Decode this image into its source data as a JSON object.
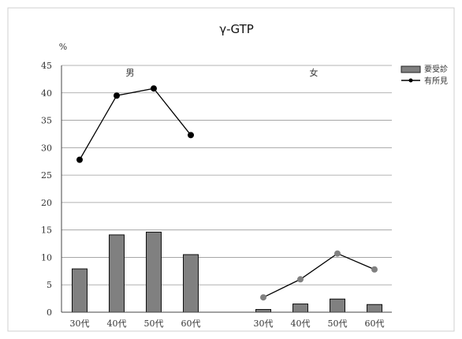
{
  "chart_data": {
    "type": "bar",
    "title": "γ-GTP",
    "ylabel": "%",
    "ylim": [
      0,
      45
    ],
    "yticks": [
      0,
      5,
      10,
      15,
      20,
      25,
      30,
      35,
      40,
      45
    ],
    "grid": true,
    "legend_position": "top-right",
    "groups": [
      {
        "label": "男",
        "categories": [
          "30代",
          "40代",
          "50代",
          "60代"
        ],
        "series": [
          {
            "name": "要受診",
            "type": "bar",
            "color": "#808080",
            "values": [
              7.9,
              14.1,
              14.6,
              10.5
            ]
          },
          {
            "name": "有所見",
            "type": "line",
            "color": "#000000",
            "values": [
              27.8,
              39.5,
              40.8,
              32.3
            ]
          }
        ]
      },
      {
        "label": "女",
        "categories": [
          "30代",
          "40代",
          "50代",
          "60代"
        ],
        "series": [
          {
            "name": "要受診",
            "type": "bar",
            "color": "#808080",
            "values": [
              0.5,
              1.5,
              2.4,
              1.4
            ]
          },
          {
            "name": "有所見",
            "type": "line",
            "color": "#808080",
            "values": [
              2.7,
              6.0,
              10.7,
              7.8
            ]
          }
        ]
      }
    ],
    "legend": [
      {
        "name": "要受診",
        "swatch": "bar"
      },
      {
        "name": "有所見",
        "swatch": "line"
      }
    ]
  }
}
